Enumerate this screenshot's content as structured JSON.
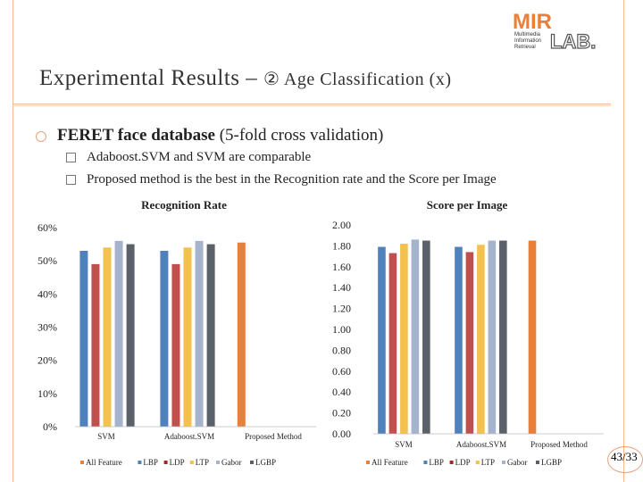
{
  "slide": {
    "title_main": "Experimental Results –",
    "title_sub": "② Age Classification (x)",
    "bullet_bold": "FERET face database",
    "bullet_rest": " (5-fold cross validation)",
    "sub_items": [
      "Adaboost.SVM and SVM are comparable",
      "Proposed method is the best in the Recognition rate and the Score per Image"
    ],
    "page_number": "43/33",
    "logo_text_top": "MIR",
    "logo_text_lines": [
      "Multimedia",
      "Information",
      "Retrieval"
    ],
    "logo_text_lab": "LAB."
  },
  "colors": {
    "accent": "#e8a27b",
    "All Feature": "#4f81bd",
    "LBP": "#c0504d",
    "LDP": "#9b2d2a",
    "LTP": "#f2c14e",
    "Gabor": "#a5b4cc",
    "LGBP": "#5b616b",
    "Proposed": "#e8803a"
  },
  "chart_data": [
    {
      "type": "bar",
      "title": "Recognition Rate",
      "categories": [
        "SVM",
        "Adaboost.SVM",
        "Proposed Method"
      ],
      "series": [
        {
          "name": "All Feature",
          "values": [
            0.53,
            0.53,
            null
          ]
        },
        {
          "name": "LBP",
          "values": [
            0.49,
            0.49,
            null
          ]
        },
        {
          "name": "LDP",
          "values": [
            0.54,
            0.54,
            null
          ]
        },
        {
          "name": "LTP",
          "values": [
            0.56,
            0.56,
            null
          ]
        },
        {
          "name": "Gabor",
          "values": [
            0.55,
            0.55,
            null
          ]
        },
        {
          "name": "LGBP",
          "values": [
            null,
            null,
            0.555
          ]
        }
      ],
      "yticks": [
        "0%",
        "10%",
        "20%",
        "30%",
        "40%",
        "50%",
        "60%"
      ],
      "ylim": [
        0,
        0.6
      ],
      "legend": [
        "All Feature",
        "LBP",
        "LDP",
        "LTP",
        "Gabor",
        "LGBP"
      ],
      "legend_position": "bottom"
    },
    {
      "type": "bar",
      "title": "Score per Image",
      "categories": [
        "SVM",
        "Adaboost.SVM",
        "Proposed Method"
      ],
      "series": [
        {
          "name": "All Feature",
          "values": [
            1.79,
            1.79,
            null
          ]
        },
        {
          "name": "LBP",
          "values": [
            1.73,
            1.74,
            null
          ]
        },
        {
          "name": "LDP",
          "values": [
            1.82,
            1.81,
            null
          ]
        },
        {
          "name": "LTP",
          "values": [
            1.86,
            1.85,
            null
          ]
        },
        {
          "name": "Gabor",
          "values": [
            1.85,
            1.85,
            null
          ]
        },
        {
          "name": "LGBP",
          "values": [
            null,
            null,
            1.85
          ]
        }
      ],
      "yticks": [
        "0.00",
        "0.20",
        "0.40",
        "0.60",
        "0.80",
        "1.00",
        "1.20",
        "1.40",
        "1.60",
        "1.80",
        "2.00"
      ],
      "ylim": [
        0,
        2.0
      ],
      "legend": [
        "All Feature",
        "LBP",
        "LDP",
        "LTP",
        "Gabor",
        "LGBP"
      ],
      "legend_position": "bottom"
    }
  ]
}
